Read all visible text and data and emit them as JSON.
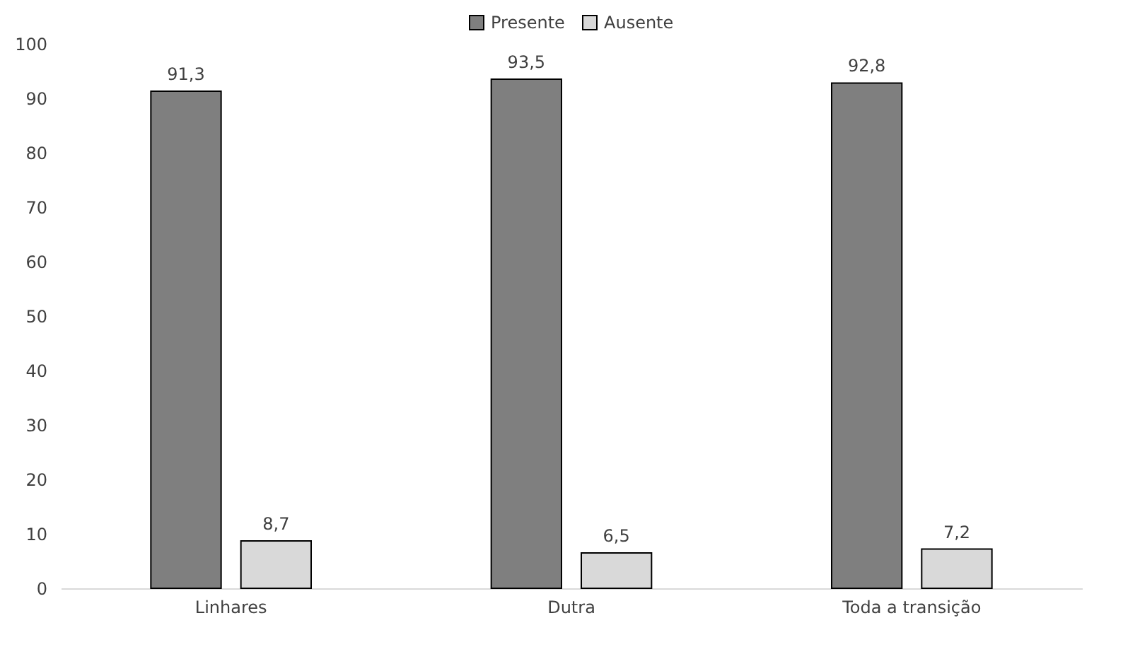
{
  "chart_data": {
    "type": "bar",
    "categories": [
      "Linhares",
      "Dutra",
      "Toda a transição"
    ],
    "series": [
      {
        "name": "Presente",
        "color": "#7f7f7f",
        "values": [
          91.3,
          93.5,
          92.8
        ],
        "value_labels": [
          "91,3",
          "93,5",
          "92,8"
        ]
      },
      {
        "name": "Ausente",
        "color": "#d9d9d9",
        "values": [
          8.7,
          6.5,
          7.2
        ],
        "value_labels": [
          "8,7",
          "6,5",
          "7,2"
        ]
      }
    ],
    "ylim": [
      0,
      100
    ],
    "yticks": [
      0,
      10,
      20,
      30,
      40,
      50,
      60,
      70,
      80,
      90,
      100
    ],
    "grid": false,
    "legend": "top"
  }
}
